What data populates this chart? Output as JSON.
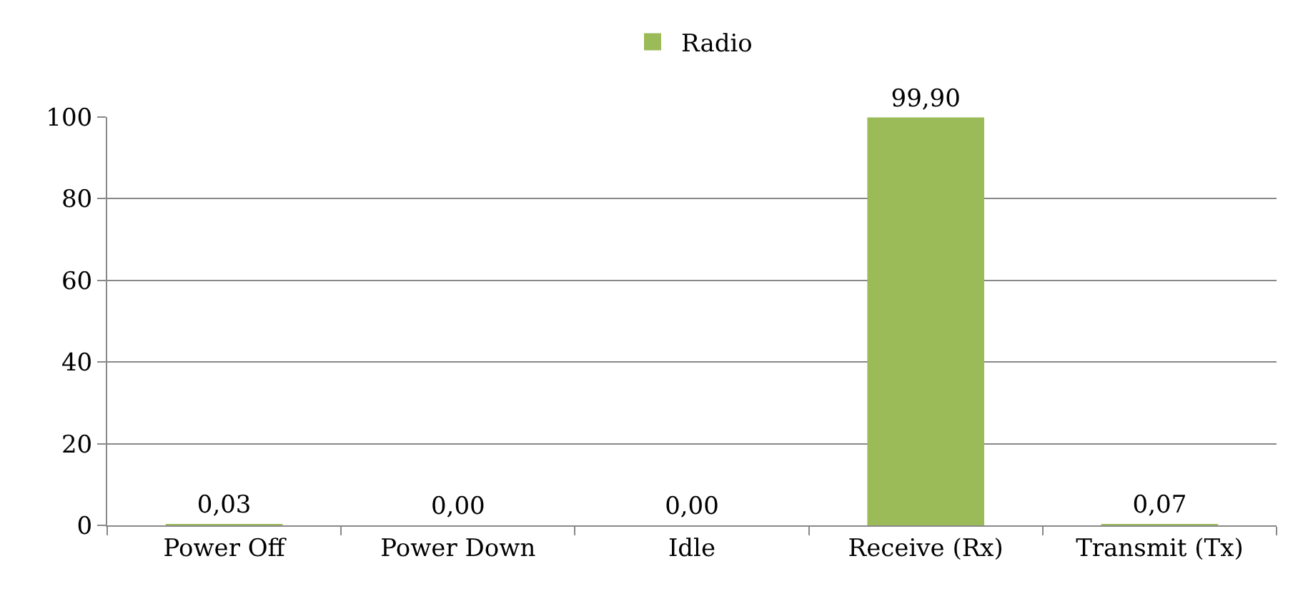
{
  "chart_data": {
    "type": "bar",
    "categories": [
      "Power Off",
      "Power Down",
      "Idle",
      "Receive (Rx)",
      "Transmit (Tx)"
    ],
    "series": [
      {
        "name": "Radio",
        "color": "#9bbb59",
        "values": [
          0.03,
          0,
          0,
          99.9,
          0.07
        ],
        "value_labels": [
          "0,03",
          "0,00",
          "0,00",
          "99,90",
          "0,07"
        ]
      }
    ],
    "ylim": [
      0,
      100
    ],
    "yticks": [
      0,
      20,
      40,
      60,
      80,
      100
    ],
    "grid": "y",
    "legend": "top"
  }
}
